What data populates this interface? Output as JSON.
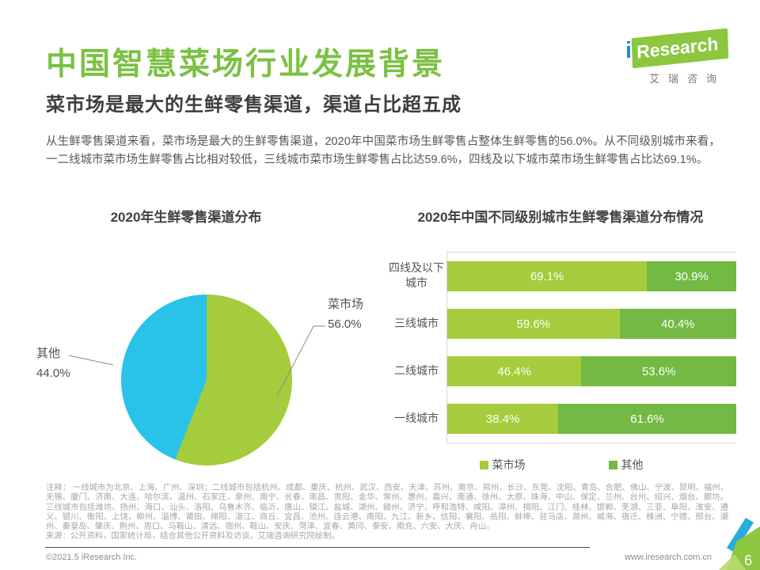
{
  "header": {
    "title": "中国智慧菜场行业发展背景",
    "subtitle": "菜市场是最大的生鲜零售渠道，渠道占比超五成",
    "logo": {
      "i": "i",
      "brand": "Research",
      "caption": "艾瑞咨询"
    }
  },
  "intro": "从生鲜零售渠道来看，菜市场是最大的生鲜零售渠道，2020年中国菜市场生鲜零售占整体生鲜零售的56.0%。从不同级别城市来看，一二线城市菜市场生鲜零售占比相对较低，三线城市菜市场生鲜零售占比达59.6%，四线及以下城市菜市场生鲜零售占比达69.1%。",
  "chart_data": [
    {
      "type": "pie",
      "title": "2020年生鲜零售渠道分布",
      "labels": [
        "菜市场",
        "其他"
      ],
      "values": [
        56.0,
        44.0
      ],
      "colors": [
        "#a5cc3c",
        "#29c2e8"
      ],
      "start_angle": "top",
      "direction": "clockwise",
      "label_format": "one-decimal-percent"
    },
    {
      "type": "bar",
      "title": "2020年中国不同级别城市生鲜零售渠道分布情况",
      "orientation": "horizontal-stacked",
      "categories": [
        "四线及以下城市",
        "三线城市",
        "二线城市",
        "一线城市"
      ],
      "series": [
        {
          "name": "菜市场",
          "color": "#a5cc3c",
          "values": [
            69.1,
            59.6,
            46.4,
            38.4
          ]
        },
        {
          "name": "其他",
          "color": "#73b943",
          "values": [
            30.9,
            40.4,
            53.6,
            61.6
          ]
        }
      ],
      "xlim": [
        0,
        100
      ],
      "grid": false,
      "legend_position": "bottom",
      "value_labels": "inside-white"
    }
  ],
  "notes": {
    "note": "注释： 一线城市为北京、上海、广州、深圳；二线城市包括杭州、成都、重庆、杭州、武汉、西安、天津、苏州、南京、郑州、长沙、东莞、沈阳、青岛、合肥、佛山、宁波、昆明、福州、无锡、厦门、济南、大连、哈尔滨、温州、石家庄、泉州、南宁、长春、南昌、贵阳、金华、常州、惠州、嘉兴、南通、徐州、太原、珠海、中山、保定、兰州、台州、绍兴、烟台、廊坊。三线城市包括潍坊、扬州、海口、汕头、洛阳、乌鲁木齐、临沂、唐山、镇江、盐城、湖州、赣州、济宁、呼和浩特、咸阳、漳州、揭阳、江门、桂林、邯郸、芜湖、三亚、阜阳、淮安、遵义、银川、衡阳、上饶、柳州、淄博、莆田、绵阳、湛江、商丘、宜昌、沧州、连云港、南阳、九江、新乡、信阳、襄阳、岳阳、蚌埠、驻马店、滁州、威海、宿迁、株洲、宁德、邢台、潮州、秦皇岛、肇庆、荆州、周口、马鞍山、清远、宿州、鞍山、安庆、菏泽、宜春、黄冈、泰安、南充、六安、大庆、舟山。",
    "source": "来源：公开资料，国家统计局，结合其他公开资料及访谈，艾瑞咨询研究院绘制。"
  },
  "footer": {
    "copyright": "©2021.5 iResearch Inc.",
    "website": "www.iresearch.com.cn",
    "page": "6"
  },
  "colors": {
    "title_green": "#7bc143",
    "logo_green": "#8dc63f",
    "market_green": "#a5cc3c",
    "other_bar_green": "#73b943",
    "other_pie_cyan": "#29c2e8",
    "corner_blue": "#29abe2",
    "corner_light_green": "#b8da6e"
  }
}
